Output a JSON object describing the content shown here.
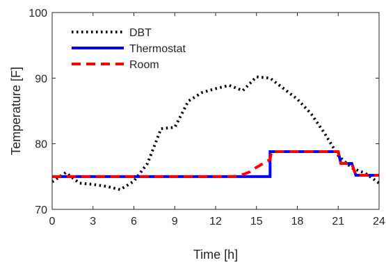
{
  "chart_data": {
    "type": "line",
    "title": "",
    "xlabel": "Time [h]",
    "ylabel": "Temperature [F]",
    "xlim": [
      0,
      24
    ],
    "ylim": [
      70,
      100
    ],
    "xticks": [
      0,
      3,
      6,
      9,
      12,
      15,
      18,
      21,
      24
    ],
    "yticks": [
      70,
      80,
      90,
      100
    ],
    "grid": false,
    "legend_position": "top-left",
    "series": [
      {
        "name": "DBT",
        "color": "#000000",
        "style": "dotted",
        "x": [
          0,
          1,
          2,
          3,
          4,
          5,
          6,
          7,
          8,
          9,
          10,
          11,
          12,
          13,
          14,
          15,
          16,
          17,
          18,
          19,
          20,
          21,
          22,
          23,
          24
        ],
        "y": [
          74.2,
          75.6,
          74.0,
          73.8,
          73.5,
          73.0,
          74.3,
          77.0,
          82.3,
          82.5,
          86.5,
          87.8,
          88.4,
          88.9,
          88.1,
          90.2,
          90.0,
          88.4,
          86.8,
          84.6,
          81.6,
          78.2,
          76.3,
          75.5,
          74.0
        ]
      },
      {
        "name": "Thermostat",
        "color": "#0000ff",
        "style": "solid",
        "x": [
          0,
          16,
          16,
          21,
          21.2,
          22,
          22.3,
          24
        ],
        "y": [
          75,
          75,
          78.8,
          78.8,
          77.0,
          77.0,
          75.2,
          75.2
        ]
      },
      {
        "name": "Room",
        "color": "#ff0000",
        "style": "dashed",
        "x": [
          0,
          13,
          13.5,
          14,
          14.5,
          15,
          15.5,
          16,
          16.1,
          21,
          21.2,
          22,
          22.3,
          24
        ],
        "y": [
          75,
          75,
          75.05,
          75.3,
          75.7,
          76.4,
          77.0,
          77.6,
          78.8,
          78.8,
          77.0,
          77.0,
          75.2,
          75.2
        ]
      }
    ]
  }
}
